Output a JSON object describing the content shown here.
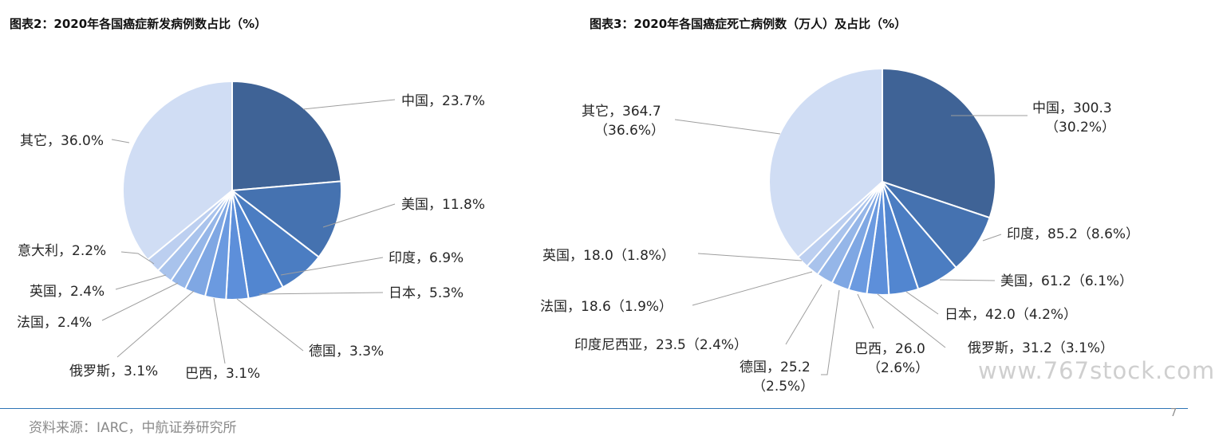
{
  "chart_data": [
    {
      "type": "pie",
      "title": "图表2：2020年各国癌症新发病例数占比（%）",
      "slices": [
        {
          "label": "中国，23.7%",
          "name": "中国",
          "value": 23.7,
          "color": "#3f6396"
        },
        {
          "label": "美国，11.8%",
          "name": "美国",
          "value": 11.8,
          "color": "#4572b0"
        },
        {
          "label": "印度，6.9%",
          "name": "印度",
          "value": 6.9,
          "color": "#4b7dc2"
        },
        {
          "label": "日本，5.3%",
          "name": "日本",
          "value": 5.3,
          "color": "#5286d0"
        },
        {
          "label": "德国，3.3%",
          "name": "德国",
          "value": 3.3,
          "color": "#5d8fda"
        },
        {
          "label": "巴西，3.1%",
          "name": "巴西",
          "value": 3.1,
          "color": "#6b9ae0"
        },
        {
          "label": "俄罗斯，3.1%",
          "name": "俄罗斯",
          "value": 3.1,
          "color": "#7fa7e3"
        },
        {
          "label": "法国，2.4%",
          "name": "法国",
          "value": 2.4,
          "color": "#95b6e8"
        },
        {
          "label": "英国，2.4%",
          "name": "英国",
          "value": 2.4,
          "color": "#a9c3ec"
        },
        {
          "label": "意大利，2.2%",
          "name": "意大利",
          "value": 2.2,
          "color": "#bccff0"
        },
        {
          "label": "其它，36.0%",
          "name": "其它",
          "value": 36.0,
          "color": "#d0ddf4"
        }
      ]
    },
    {
      "type": "pie",
      "title": "图表3：2020年各国癌症死亡病例数（万人）及占比（%）",
      "slices": [
        {
          "label": "中国，300.3\n（30.2%）",
          "name": "中国",
          "value": 300.3,
          "percent": 30.2,
          "color": "#3f6396"
        },
        {
          "label": "印度，85.2（8.6%）",
          "name": "印度",
          "value": 85.2,
          "percent": 8.6,
          "color": "#4572b0"
        },
        {
          "label": "美国，61.2（6.1%）",
          "name": "美国",
          "value": 61.2,
          "percent": 6.1,
          "color": "#4b7dc2"
        },
        {
          "label": "日本，42.0（4.2%）",
          "name": "日本",
          "value": 42.0,
          "percent": 4.2,
          "color": "#5286d0"
        },
        {
          "label": "俄罗斯，31.2（3.1%）",
          "name": "俄罗斯",
          "value": 31.2,
          "percent": 3.1,
          "color": "#5d8fda"
        },
        {
          "label": "巴西，26.0\n（2.6%）",
          "name": "巴西",
          "value": 26.0,
          "percent": 2.6,
          "color": "#6b9ae0"
        },
        {
          "label": "德国，25.2\n（2.5%）",
          "name": "德国",
          "value": 25.2,
          "percent": 2.5,
          "color": "#7fa7e3"
        },
        {
          "label": "印度尼西亚，23.5（2.4%）",
          "name": "印度尼西亚",
          "value": 23.5,
          "percent": 2.4,
          "color": "#95b6e8"
        },
        {
          "label": "法国，18.6（1.9%）",
          "name": "法国",
          "value": 18.6,
          "percent": 1.9,
          "color": "#a9c3ec"
        },
        {
          "label": "英国，18.0（1.8%）",
          "name": "英国",
          "value": 18.0,
          "percent": 1.8,
          "color": "#bccff0"
        },
        {
          "label": "其它，364.7\n（36.6%）",
          "name": "其它",
          "value": 364.7,
          "percent": 36.6,
          "color": "#d0ddf4"
        }
      ]
    }
  ],
  "footer": {
    "source": "资料来源：IARC，中航证券研究所",
    "page_number": "7",
    "watermark": "www.767stock.com"
  },
  "colors": {
    "leader_line": "#9e9e9e",
    "slice_border": "#ffffff",
    "rule": "#2e75b6"
  }
}
